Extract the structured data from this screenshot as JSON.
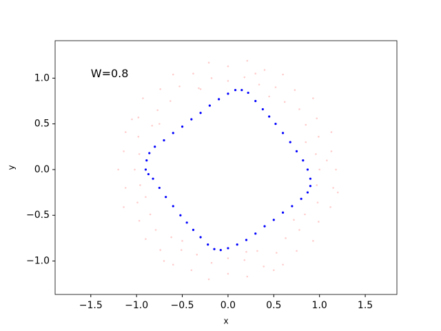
{
  "chart_data": {
    "type": "scatter",
    "annotation": {
      "text": "W=0.8",
      "x": -1.5,
      "y": 1.0
    },
    "xlabel": "x",
    "ylabel": "y",
    "xlim": [
      -1.89,
      1.846
    ],
    "ylim": [
      -1.366,
      1.41
    ],
    "xticks": [
      {
        "value": -1.5,
        "label": "−1.5"
      },
      {
        "value": -1.0,
        "label": "−1.0"
      },
      {
        "value": -0.5,
        "label": "−0.5"
      },
      {
        "value": 0,
        "label": "0.0"
      },
      0.5,
      {
        "value": 1,
        "label": "1.0"
      },
      1.5
    ],
    "yticks": [
      {
        "value": -1.0,
        "label": "−1.0"
      },
      {
        "value": -0.5,
        "label": "−0.5"
      },
      {
        "value": 0,
        "label": "0.0"
      },
      0.5,
      {
        "value": 1,
        "label": "1.0"
      }
    ],
    "series": [
      {
        "color": "#ff0000",
        "alpha": 0.2,
        "size": 1.3,
        "x": [
          1.0,
          1.18,
          0.96,
          1.13,
          0.99,
          1.13,
          0.85,
          0.97,
          0.78,
          0.93,
          0.62,
          0.73,
          0.52,
          0.6,
          0.34,
          0.4,
          0.18,
          0.21,
          0,
          0,
          -0.18,
          -0.21,
          -0.32,
          -0.38,
          -0.53,
          -0.6,
          -0.63,
          -0.74,
          -0.77,
          -0.93,
          -0.83,
          -0.98,
          -0.98,
          -1.12,
          -0.97,
          -1.14,
          -1.02,
          -1.2,
          -0.96,
          -1.12,
          -0.99,
          -1.14,
          -0.85,
          -0.97,
          -0.79,
          -0.9,
          -0.62,
          -0.74,
          -0.51,
          -0.6,
          -0.34,
          -0.4,
          -0.18,
          -0.21,
          0,
          0,
          0.18,
          0.21,
          0.32,
          0.39,
          0.53,
          0.6,
          0.63,
          0.75,
          0.78,
          0.93,
          0.84,
          0.99,
          0.98,
          1.12,
          0.97,
          1.15,
          0.85,
          0.45,
          -0.3,
          -0.75,
          -0.9,
          -0.5,
          0.2,
          0.72,
          1.08,
          0.3,
          -1.05,
          -0.7,
          0.5,
          1.2
        ],
        "y": [
          0,
          0,
          0.17,
          0.2,
          0.36,
          0.41,
          0.49,
          0.56,
          0.66,
          0.78,
          0.74,
          0.87,
          0.9,
          1.04,
          0.93,
          1.09,
          1.01,
          1.19,
          0.97,
          1.13,
          1.0,
          1.17,
          0.89,
          1.05,
          0.91,
          1.04,
          0.75,
          0.88,
          0.65,
          0.78,
          0.48,
          0.57,
          0.36,
          0.41,
          0.17,
          0.2,
          0,
          0,
          -0.17,
          -0.2,
          -0.36,
          -0.41,
          -0.49,
          -0.56,
          -0.66,
          -0.76,
          -0.74,
          -0.88,
          -0.88,
          -1.04,
          -0.93,
          -1.1,
          -1.02,
          -1.2,
          -0.97,
          -1.14,
          -0.99,
          -1.17,
          -0.89,
          -1.06,
          -0.91,
          -1.04,
          -0.75,
          -0.89,
          -0.66,
          -0.78,
          -0.49,
          -0.57,
          -0.36,
          -0.41,
          -0.17,
          -0.2,
          0.3,
          0.8,
          0.88,
          0.5,
          -0.3,
          -0.78,
          -0.9,
          -0.55,
          0.1,
          1.05,
          0.55,
          -1.0,
          -1.1,
          -0.25
        ]
      },
      {
        "color": "#0000ff",
        "alpha": 1,
        "size": 1.6,
        "x": [
          -0.9,
          -0.89,
          -0.86,
          -0.8,
          -0.7,
          -0.6,
          -0.5,
          -0.4,
          -0.3,
          -0.2,
          -0.1,
          0.0,
          0.08,
          0.15,
          0.22,
          0.3,
          0.38,
          0.45,
          0.52,
          0.6,
          0.68,
          0.75,
          0.82,
          0.87,
          0.9,
          0.9,
          0.87,
          0.8,
          0.7,
          0.6,
          0.5,
          0.4,
          0.3,
          0.2,
          0.1,
          0.0,
          -0.08,
          -0.15,
          -0.22,
          -0.3,
          -0.38,
          -0.45,
          -0.52,
          -0.6,
          -0.68,
          -0.75,
          -0.82,
          -0.87
        ],
        "y": [
          0.0,
          0.1,
          0.18,
          0.25,
          0.32,
          0.4,
          0.47,
          0.55,
          0.62,
          0.7,
          0.77,
          0.83,
          0.87,
          0.87,
          0.84,
          0.75,
          0.66,
          0.58,
          0.5,
          0.4,
          0.3,
          0.2,
          0.1,
          0.0,
          -0.1,
          -0.18,
          -0.25,
          -0.32,
          -0.4,
          -0.47,
          -0.55,
          -0.62,
          -0.7,
          -0.77,
          -0.82,
          -0.86,
          -0.88,
          -0.87,
          -0.82,
          -0.74,
          -0.66,
          -0.58,
          -0.5,
          -0.4,
          -0.3,
          -0.2,
          -0.1,
          -0.05
        ]
      }
    ]
  }
}
